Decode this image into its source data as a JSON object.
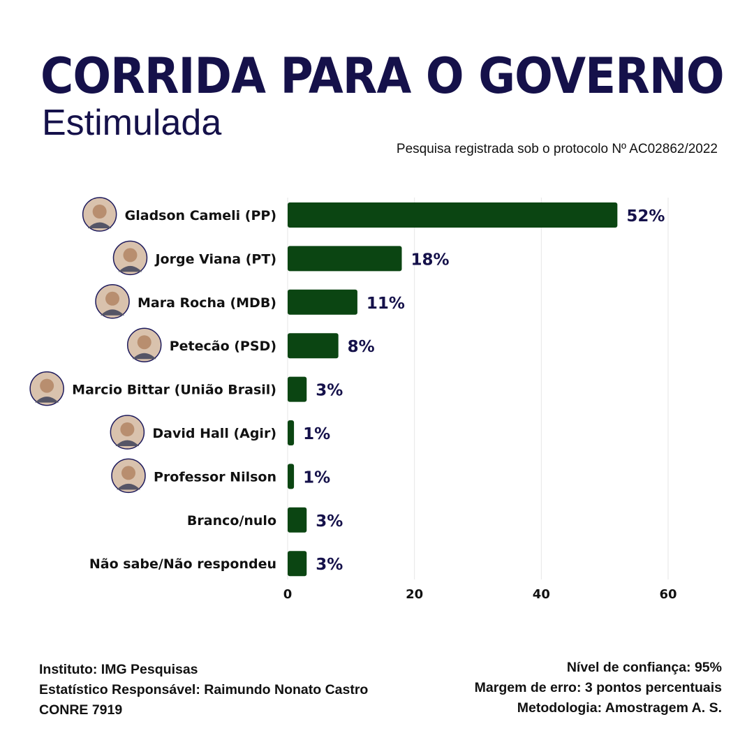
{
  "header": {
    "title": "CORRIDA PARA O GOVERNO",
    "subtitle": "Estimulada",
    "protocol": "Pesquisa registrada sob o protocolo  Nº AC02862/2022"
  },
  "chart_data": {
    "type": "bar",
    "orientation": "horizontal",
    "categories": [
      "Gladson Cameli (PP)",
      "Jorge Viana (PT)",
      "Mara Rocha (MDB)",
      "Petecão (PSD)",
      "Marcio Bittar (União Brasil)",
      "David Hall (Agir)",
      "Professor Nilson",
      "Branco/nulo",
      "Não sabe/Não respondeu"
    ],
    "values": [
      52,
      18,
      11,
      8,
      3,
      1,
      1,
      3,
      3
    ],
    "value_labels": [
      "52%",
      "18%",
      "11%",
      "8%",
      "3%",
      "1%",
      "1%",
      "3%",
      "3%"
    ],
    "has_photo": [
      true,
      true,
      true,
      true,
      true,
      true,
      true,
      false,
      false
    ],
    "xlim": [
      0,
      60
    ],
    "xticks": [
      0,
      20,
      40,
      60
    ],
    "xtick_labels": [
      "0",
      "20",
      "40",
      "60"
    ],
    "grid": true,
    "bar_color": "#0b4512",
    "text_color": "#15114a"
  },
  "footer": {
    "left": [
      "Instituto: IMG Pesquisas",
      "Estatístico Responsável: Raimundo Nonato Castro",
      "CONRE 7919"
    ],
    "right": [
      "Nível de confiança: 95%",
      "Margem de erro: 3 pontos percentuais",
      "Metodologia: Amostragem A. S."
    ]
  }
}
